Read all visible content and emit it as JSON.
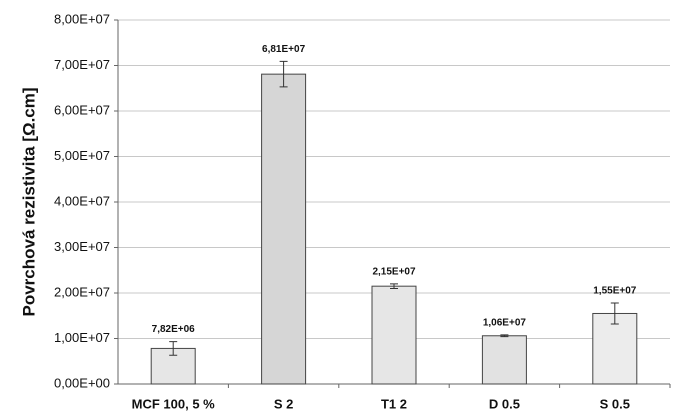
{
  "chart_data": {
    "type": "bar",
    "y_label": "Povrchová rezistivita [Ω.cm]",
    "categories": [
      "MCF 100, 5 %",
      "S 2",
      "T1 2",
      "D 0.5",
      "S 0.5"
    ],
    "values": [
      7820000,
      68100000,
      21500000,
      10600000,
      15500000
    ],
    "value_labels": [
      "7,82E+06",
      "6,81E+07",
      "2,15E+07",
      "1,06E+07",
      "1,55E+07"
    ],
    "errors": [
      1500000,
      2800000,
      500000,
      200000,
      2300000
    ],
    "colors": [
      "#e6e6e6",
      "#d6d6d6",
      "#e6e6e6",
      "#e2e2e2",
      "#ececec"
    ],
    "ylim": [
      0,
      80000000
    ],
    "yticks": [
      {
        "value": 0,
        "label": "0,00E+00"
      },
      {
        "value": 10000000,
        "label": "1,00E+07"
      },
      {
        "value": 20000000,
        "label": "2,00E+07"
      },
      {
        "value": 30000000,
        "label": "3,00E+07"
      },
      {
        "value": 40000000,
        "label": "4,00E+07"
      },
      {
        "value": 50000000,
        "label": "5,00E+07"
      },
      {
        "value": 60000000,
        "label": "6,00E+07"
      },
      {
        "value": 70000000,
        "label": "7,00E+07"
      },
      {
        "value": 80000000,
        "label": "8,00E+07"
      }
    ],
    "grid": true
  }
}
